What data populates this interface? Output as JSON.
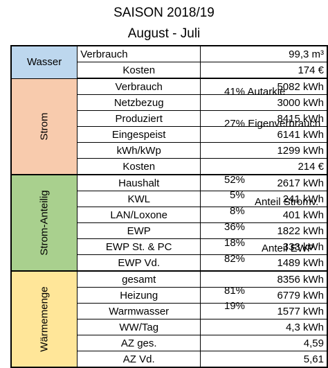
{
  "title": "SAISON 2018/19",
  "subtitle": "August - Juli",
  "groups": {
    "wasser": "Wasser",
    "strom": "Strom",
    "anteil": "Strom-Anteilig",
    "waerme": "Wärmemenge"
  },
  "rows": [
    {
      "label": "Verbrauch",
      "value": "99,3 m³"
    },
    {
      "label": "Kosten",
      "value": "174 €"
    },
    {
      "label": "Verbrauch",
      "value": "5082 kWh"
    },
    {
      "label": "Netzbezug",
      "value": "3000 kWh"
    },
    {
      "label": "Produziert",
      "value": "8415 kWh"
    },
    {
      "label": "Eingespeist",
      "value": "6141 kWh"
    },
    {
      "label": "kWh/kWp",
      "value": "1299 kWh"
    },
    {
      "label": "Kosten",
      "value": "214 €"
    },
    {
      "label": "Haushalt",
      "value": "2617 kWh"
    },
    {
      "label": "KWL",
      "value": "241 kWh"
    },
    {
      "label": "LAN/Loxone",
      "value": "401 kWh"
    },
    {
      "label": "EWP",
      "value": "1822 kWh"
    },
    {
      "label": "EWP St. & PC",
      "value": "333 kWh"
    },
    {
      "label": "EWP Vd.",
      "value": "1489 kWh"
    },
    {
      "label": "gesamt",
      "value": "8356 kWh"
    },
    {
      "label": "Heizung",
      "value": "6779 kWh"
    },
    {
      "label": "Warmwasser",
      "value": "1577 kWh"
    },
    {
      "label": "WW/Tag",
      "value": "4,3 kWh"
    },
    {
      "label": "AZ ges.",
      "value": "4,59"
    },
    {
      "label": "AZ Vd.",
      "value": "5,61"
    }
  ],
  "notes": {
    "autarkie": "41%  Autarkie",
    "eigenverbrauch": "27%  Eigenverbrauch",
    "p_haushalt": "52%",
    "p_kwl": "5%",
    "p_lan": "8%",
    "p_ewp": "36%",
    "p_ewp_st": "18%",
    "p_ewp_vd": "82%",
    "p_heizung": "81%",
    "p_warmwasser": "19%",
    "anteil_stromv": "Anteil Stromv.",
    "anteil_ewp": "Anteil EWP"
  }
}
